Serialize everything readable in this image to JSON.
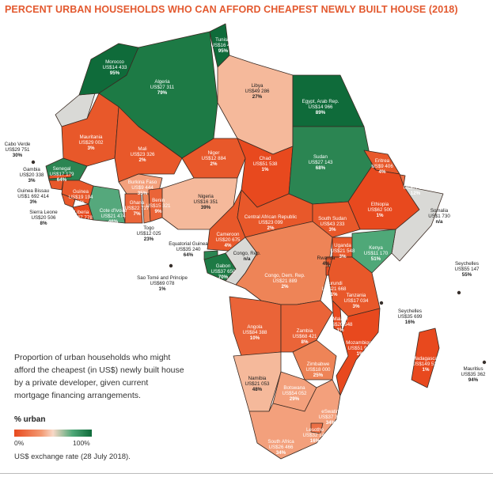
{
  "title": "PERCENT URBAN HOUSEHOLDS WHO CAN AFFORD CHEAPEST NEWLY BUILT HOUSE (2018)",
  "description": "Proportion of urban households who might afford the cheapest (in US$) newly built house by a private developer, given current mortgage financing arrangements.",
  "legend": {
    "title": "% urban",
    "min_label": "0%",
    "max_label": "100%",
    "colors": {
      "low": "#e8491e",
      "mid": "#f8d8c7",
      "high": "#0f6b3a"
    }
  },
  "exchange_note": "US$ exchange rate (28 July 2018).",
  "countries": [
    {
      "id": "morocco",
      "name": "Morocco",
      "price": "US$14 433",
      "pct": "95%",
      "fill": "#0f6b3a"
    },
    {
      "id": "algeria",
      "name": "Algeria",
      "price": "US$27 311",
      "pct": "79%",
      "fill": "#1d7a45"
    },
    {
      "id": "tunisia",
      "name": "Tunisia",
      "price": "US$16 433",
      "pct": "95%",
      "fill": "#0f6b3a"
    },
    {
      "id": "libya",
      "name": "Libya",
      "price": "US$49 286",
      "pct": "27%",
      "fill": "#f5b99b"
    },
    {
      "id": "egypt",
      "name": "Egypt, Arab Rep.",
      "price": "US$14 966",
      "pct": "89%",
      "fill": "#0f6b3a"
    },
    {
      "id": "mauritania",
      "name": "Mauritania",
      "price": "US$29 002",
      "pct": "3%",
      "fill": "#e8582a"
    },
    {
      "id": "mali",
      "name": "Mali",
      "price": "US$23 326",
      "pct": "2%",
      "fill": "#e8582a"
    },
    {
      "id": "niger",
      "name": "Niger",
      "price": "US$12 884",
      "pct": "2%",
      "fill": "#e8582a"
    },
    {
      "id": "chad",
      "name": "Chad",
      "price": "US$51 538",
      "pct": "1%",
      "fill": "#e8491e"
    },
    {
      "id": "sudan",
      "name": "Sudan",
      "price": "US$27 143",
      "pct": "68%",
      "fill": "#2b8552"
    },
    {
      "id": "eritrea",
      "name": "Eritrea",
      "price": "US$9 406",
      "pct": "4%",
      "fill": "#e8582a"
    },
    {
      "id": "djibouti",
      "name": "Djibouti",
      "price": "US$77 288",
      "pct": "12%",
      "fill": "#eb6f45"
    },
    {
      "id": "ethiopia",
      "name": "Ethiopia",
      "price": "US$62 500",
      "pct": "1%",
      "fill": "#e8491e"
    },
    {
      "id": "somalia",
      "name": "Somalia",
      "price": "US$1 730",
      "pct": "n/a",
      "fill": "#d9d9d6"
    },
    {
      "id": "senegal",
      "name": "Senegal",
      "price": "US$17 179",
      "pct": "64%",
      "fill": "#2b8552"
    },
    {
      "id": "gambia",
      "name": "Gambia",
      "price": "US$20 338",
      "pct": "3%",
      "fill": "#e8582a"
    },
    {
      "id": "guineabissau",
      "name": "Guinea Bissau",
      "price": "US$1 692 414",
      "pct": "3%",
      "fill": "#e8582a"
    },
    {
      "id": "guinea",
      "name": "Guinea",
      "price": "US$19 194",
      "pct": "3%",
      "fill": "#e8582a"
    },
    {
      "id": "sierraleone",
      "name": "Sierra Leone",
      "price": "US$20 506",
      "pct": "8%",
      "fill": "#e8582a"
    },
    {
      "id": "liberia",
      "name": "Liberia",
      "price": "US$7 778",
      "pct": "0%",
      "fill": "#e8491e"
    },
    {
      "id": "cotedivoire",
      "name": "Cote d'Ivoire",
      "price": "US$21 474",
      "pct": "46%",
      "fill": "#55a87c"
    },
    {
      "id": "burkina",
      "name": "Burkina Faso",
      "price": "US$9 444",
      "pct": "35%",
      "fill": "#f3a07c"
    },
    {
      "id": "ghana",
      "name": "Ghana",
      "price": "US$22 727",
      "pct": "7%",
      "fill": "#ea6438"
    },
    {
      "id": "benin",
      "name": "Benin",
      "price": "US$15 321",
      "pct": "9%",
      "fill": "#ea6438"
    },
    {
      "id": "togo",
      "name": "Togo",
      "price": "US$12 025",
      "pct": "23%",
      "fill": "#ee8457"
    },
    {
      "id": "nigeria",
      "name": "Nigeria",
      "price": "US$16 351",
      "pct": "39%",
      "fill": "#f5b99b"
    },
    {
      "id": "cameroon",
      "name": "Cameroon",
      "price": "US$20 675",
      "pct": "4%",
      "fill": "#e8582a"
    },
    {
      "id": "car",
      "name": "Central African Republic",
      "price": "US$23 099",
      "pct": "2%",
      "fill": "#e8582a"
    },
    {
      "id": "southsudan",
      "name": "South Sudan",
      "price": "US$43 233",
      "pct": "3%",
      "fill": "#e8582a"
    },
    {
      "id": "eqguinea",
      "name": "Equatorial Guinea",
      "price": "US$35 240",
      "pct": "64%",
      "fill": "#2b8552"
    },
    {
      "id": "gabon",
      "name": "Gabon",
      "price": "US$37 650",
      "pct": "70%",
      "fill": "#1d7a45"
    },
    {
      "id": "congorep",
      "name": "Congo, Rep.",
      "price": "",
      "pct": "n/a",
      "fill": "#d9d9d6"
    },
    {
      "id": "drc",
      "name": "Congo, Dem. Rep.",
      "price": "US$21 889",
      "pct": "2%",
      "fill": "#ee8457"
    },
    {
      "id": "uganda",
      "name": "Uganda",
      "price": "US$21 548",
      "pct": "3%",
      "fill": "#e8582a"
    },
    {
      "id": "kenya",
      "name": "Kenya",
      "price": "US$11 170",
      "pct": "51%",
      "fill": "#4fa878"
    },
    {
      "id": "rwanda",
      "name": "Rwanda",
      "price": "",
      "pct": "4%",
      "fill": "#e8582a"
    },
    {
      "id": "burundi",
      "name": "Burundi",
      "price": "US$21 668",
      "pct": "1%",
      "fill": "#e8491e"
    },
    {
      "id": "tanzania",
      "name": "Tanzania",
      "price": "US$17 034",
      "pct": "3%",
      "fill": "#e8582a"
    },
    {
      "id": "angola",
      "name": "Angola",
      "price": "US$84 388",
      "pct": "10%",
      "fill": "#ea6438"
    },
    {
      "id": "zambia",
      "name": "Zambia",
      "price": "US$68 421",
      "pct": "8%",
      "fill": "#ea6438"
    },
    {
      "id": "malawi",
      "name": "Malawi",
      "price": "US$20 548",
      "pct": "1%",
      "fill": "#e8491e"
    },
    {
      "id": "mozambique",
      "name": "Mozambique",
      "price": "US$51 913",
      "pct": "1%",
      "fill": "#e8491e"
    },
    {
      "id": "madagascar",
      "name": "Madagascar",
      "price": "US$149 534",
      "pct": "1%",
      "fill": "#e8491e"
    },
    {
      "id": "zimbabwe",
      "name": "Zimbabwe",
      "price": "US$18 000",
      "pct": "25%",
      "fill": "#ee8457"
    },
    {
      "id": "namibia",
      "name": "Namibia",
      "price": "US$21 053",
      "pct": "48%",
      "fill": "#f5b99b"
    },
    {
      "id": "botswana",
      "name": "Botswana",
      "price": "US$54 052",
      "pct": "29%",
      "fill": "#f3a07c"
    },
    {
      "id": "eswatini",
      "name": "eSwatini",
      "price": "US$37 388",
      "pct": "34%",
      "fill": "#f3a07c"
    },
    {
      "id": "lesotho",
      "name": "Lesotho",
      "price": "US$32 142",
      "pct": "16%",
      "fill": "#eb6f45"
    },
    {
      "id": "southafrica",
      "name": "South Africa",
      "price": "US$26 466",
      "pct": "34%",
      "fill": "#f3a07c"
    }
  ],
  "islands": [
    {
      "id": "caboverde",
      "name": "Cabo Verde",
      "price": "US$29 751",
      "pct": "30%"
    },
    {
      "id": "saotome",
      "name": "Sao Tomé and Principe",
      "price": "US$69 078",
      "pct": "1%"
    },
    {
      "id": "seychelles1",
      "name": "Seychelles",
      "price": "US$55 147",
      "pct": "55%"
    },
    {
      "id": "seychelles2",
      "name": "Seychelles",
      "price": "US$35 699",
      "pct": "16%"
    },
    {
      "id": "mauritius",
      "name": "Mauritius",
      "price": "US$35 362",
      "pct": "94%"
    }
  ],
  "neutral_fill": "#d9d9d6",
  "ocean": "#ffffff"
}
